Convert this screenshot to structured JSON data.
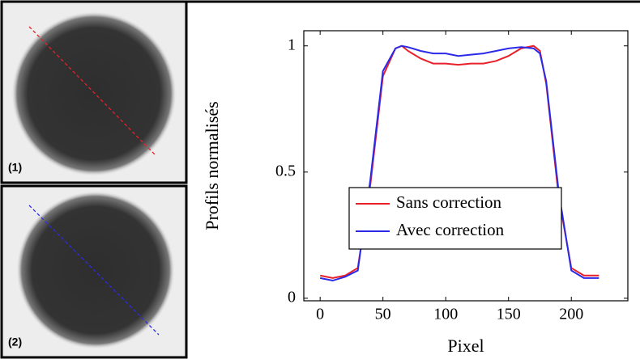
{
  "image_panels": [
    {
      "label": "(1)"
    },
    {
      "label": "(2)"
    }
  ],
  "chart_data": {
    "type": "line",
    "xlabel": "Pixel",
    "ylabel": "Profils normalisés",
    "x": [
      0,
      10,
      20,
      30,
      40,
      50,
      60,
      65,
      70,
      80,
      90,
      100,
      110,
      120,
      130,
      140,
      150,
      160,
      170,
      175,
      180,
      190,
      200,
      210,
      222
    ],
    "series": [
      {
        "name": "Sans correction",
        "color": "#e8202a",
        "values": [
          0.09,
          0.08,
          0.09,
          0.12,
          0.45,
          0.88,
          0.99,
          1.0,
          0.98,
          0.95,
          0.93,
          0.93,
          0.925,
          0.93,
          0.93,
          0.94,
          0.96,
          0.99,
          1.0,
          0.98,
          0.85,
          0.4,
          0.12,
          0.09,
          0.09
        ]
      },
      {
        "name": "Avec correction",
        "color": "#2a2ae8",
        "values": [
          0.08,
          0.07,
          0.085,
          0.11,
          0.47,
          0.9,
          0.99,
          1.0,
          0.995,
          0.98,
          0.97,
          0.97,
          0.96,
          0.965,
          0.97,
          0.98,
          0.99,
          0.995,
          0.99,
          0.97,
          0.86,
          0.42,
          0.11,
          0.08,
          0.08
        ]
      }
    ],
    "xlim": [
      -13,
      245
    ],
    "ylim": [
      -0.01,
      1.06
    ],
    "xticks": [
      0,
      50,
      100,
      150,
      200
    ],
    "yticks": [
      0,
      0.5,
      1
    ],
    "legend": "center",
    "grid": false
  }
}
